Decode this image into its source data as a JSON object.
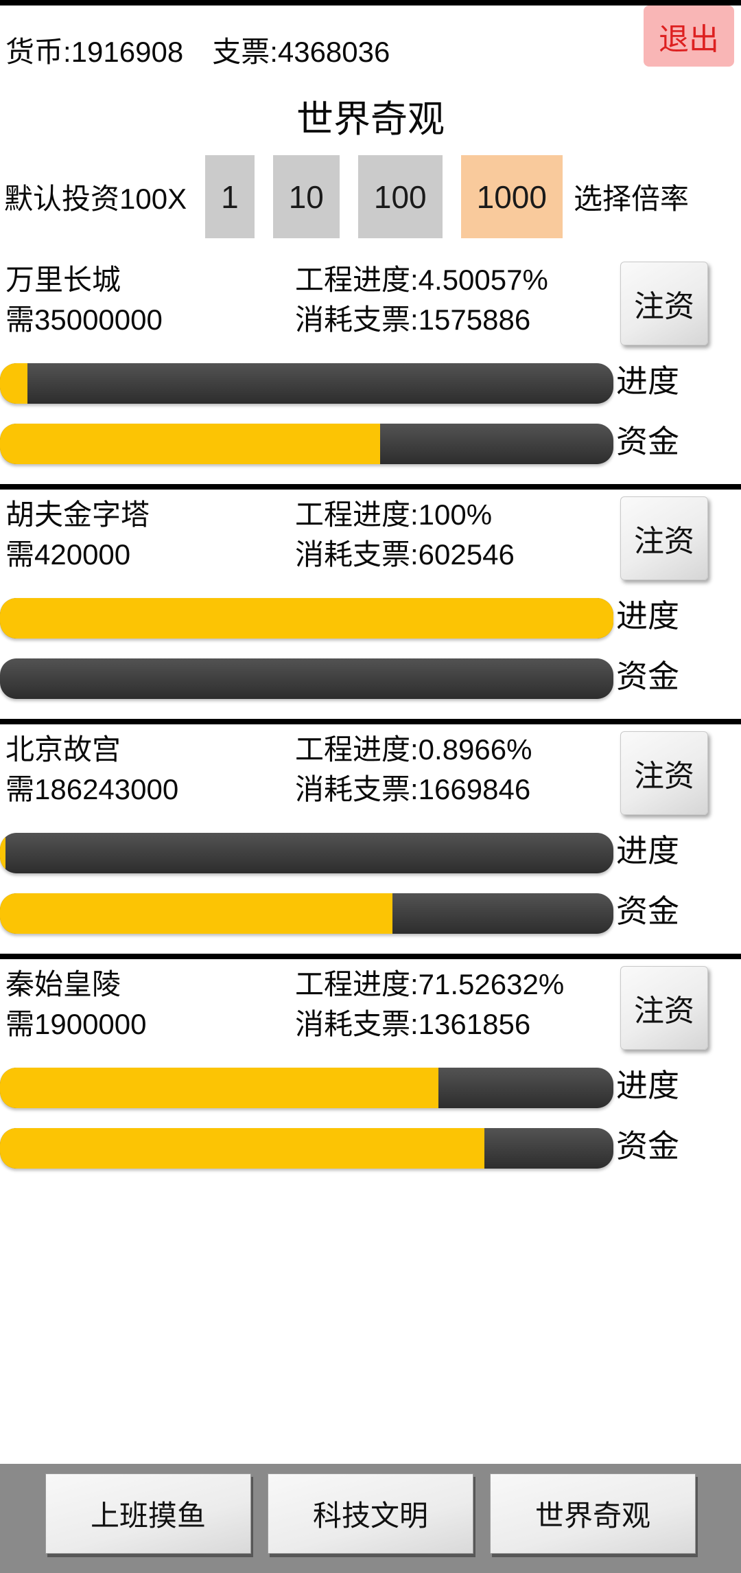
{
  "header": {
    "currency_label": "货币:1916908",
    "check_label": "支票:4368036",
    "exit_label": "退出"
  },
  "title": "世界奇观",
  "multiplier": {
    "prefix_label": "默认投资100X",
    "suffix_label": "选择倍率",
    "options": [
      {
        "label": "1",
        "active": false
      },
      {
        "label": "10",
        "active": false
      },
      {
        "label": "100",
        "active": false
      },
      {
        "label": "1000",
        "active": true
      }
    ]
  },
  "wonders": [
    {
      "name": "万里长城",
      "need": "需35000000",
      "progress_text": "工程进度:4.50057%",
      "cost_text": "消耗支票:1575886",
      "invest_label": "注资",
      "progress_bar_label": "进度",
      "funds_bar_label": "资金",
      "progress_pct": 4.5,
      "funds_pct": 62
    },
    {
      "name": "胡夫金字塔",
      "need": "需420000",
      "progress_text": "工程进度:100%",
      "cost_text": "消耗支票:602546",
      "invest_label": "注资",
      "progress_bar_label": "进度",
      "funds_bar_label": "资金",
      "progress_pct": 100,
      "funds_pct": 0
    },
    {
      "name": "北京故宫",
      "need": "需186243000",
      "progress_text": "工程进度:0.8966%",
      "cost_text": "消耗支票:1669846",
      "invest_label": "注资",
      "progress_bar_label": "进度",
      "funds_bar_label": "资金",
      "progress_pct": 0.9,
      "funds_pct": 64
    },
    {
      "name": "秦始皇陵",
      "need": "需1900000",
      "progress_text": "工程进度:71.52632%",
      "cost_text": "消耗支票:1361856",
      "invest_label": "注资",
      "progress_bar_label": "进度",
      "funds_bar_label": "资金",
      "progress_pct": 71.5,
      "funds_pct": 79
    }
  ],
  "nav": {
    "items": [
      {
        "label": "上班摸鱼"
      },
      {
        "label": "科技文明"
      },
      {
        "label": "世界奇观"
      }
    ]
  },
  "colors": {
    "bar_fill": "#FCC404",
    "bar_track_top": "#535353",
    "bar_track_bottom": "#2D2D2D",
    "multiplier_active": "#F9CA9C",
    "multiplier_idle": "#CBCBCB",
    "exit_bg": "#F9B6B6",
    "exit_text": "#DD2020",
    "nav_bg": "#8A8A8A",
    "divider": "#000000"
  }
}
